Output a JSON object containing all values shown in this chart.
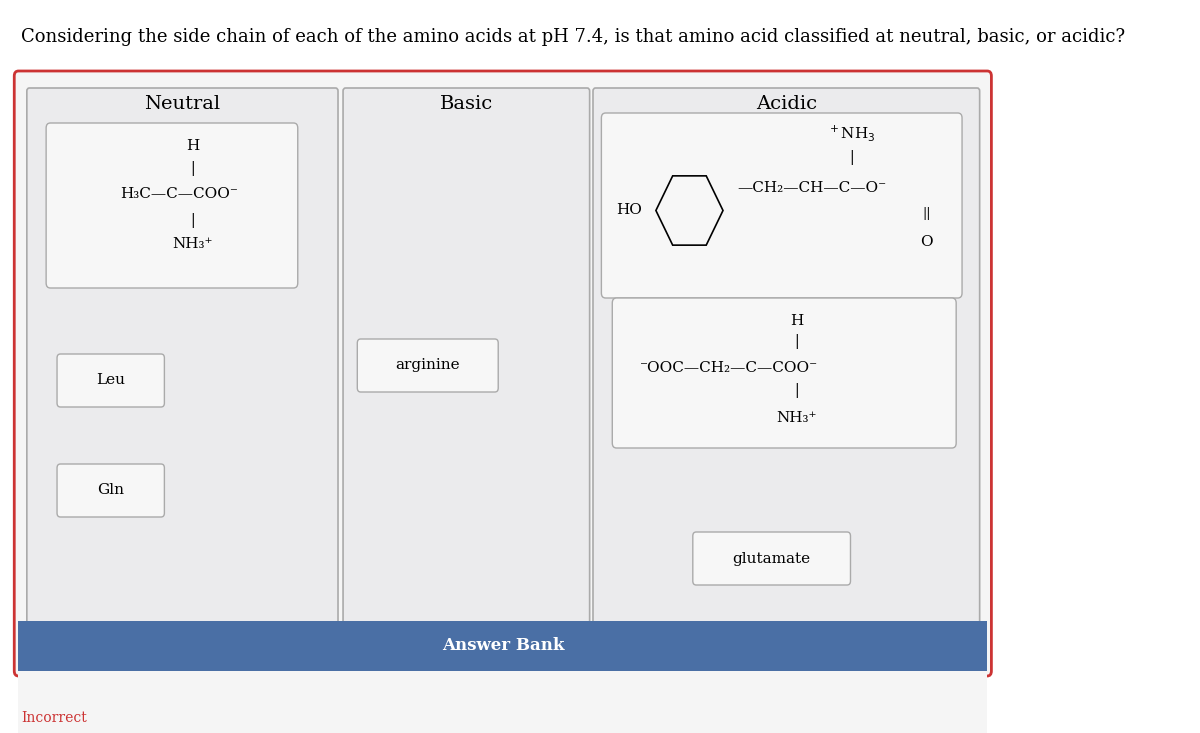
{
  "title": "Considering the side chain of each of the amino acids at pH 7.4, is that amino acid classified at neutral, basic, or acidic?",
  "title_fontsize": 13,
  "bg_color": "#ffffff",
  "outer_border_color": "#cc4444",
  "column_headers": [
    "Neutral",
    "Basic",
    "Acidic"
  ],
  "answer_bank_label": "Answer Bank",
  "answer_bank_bg": "#4a6fa5",
  "incorrect_label": "Incorrect",
  "neutral_structure": "H\n|\nH₃C—C—COO⁻\n|\nNH₃⁺",
  "acidic_structure1_lines": [
    [
      "+",
      "NH₃"
    ],
    [
      "—CH₂—CH—C—O⁻"
    ],
    [
      "",
      "",
      "||"
    ],
    [
      "",
      "",
      "O"
    ]
  ],
  "acidic_structure2": "H\n|\n⁻OOC—CH₂—C—COO⁻\n|\nNH₃⁺",
  "neutral_tags": [
    "Leu",
    "Gln"
  ],
  "basic_tags": [
    "arginine"
  ],
  "acidic_tags": [
    "glutamate"
  ],
  "col_colors": [
    "#e8e8ea",
    "#e8e8ea",
    "#e8e8ea"
  ],
  "box_bg": "#e8e8ea",
  "tag_bg": "#f0f0f0",
  "inner_box_bg": "#f0f0f0"
}
